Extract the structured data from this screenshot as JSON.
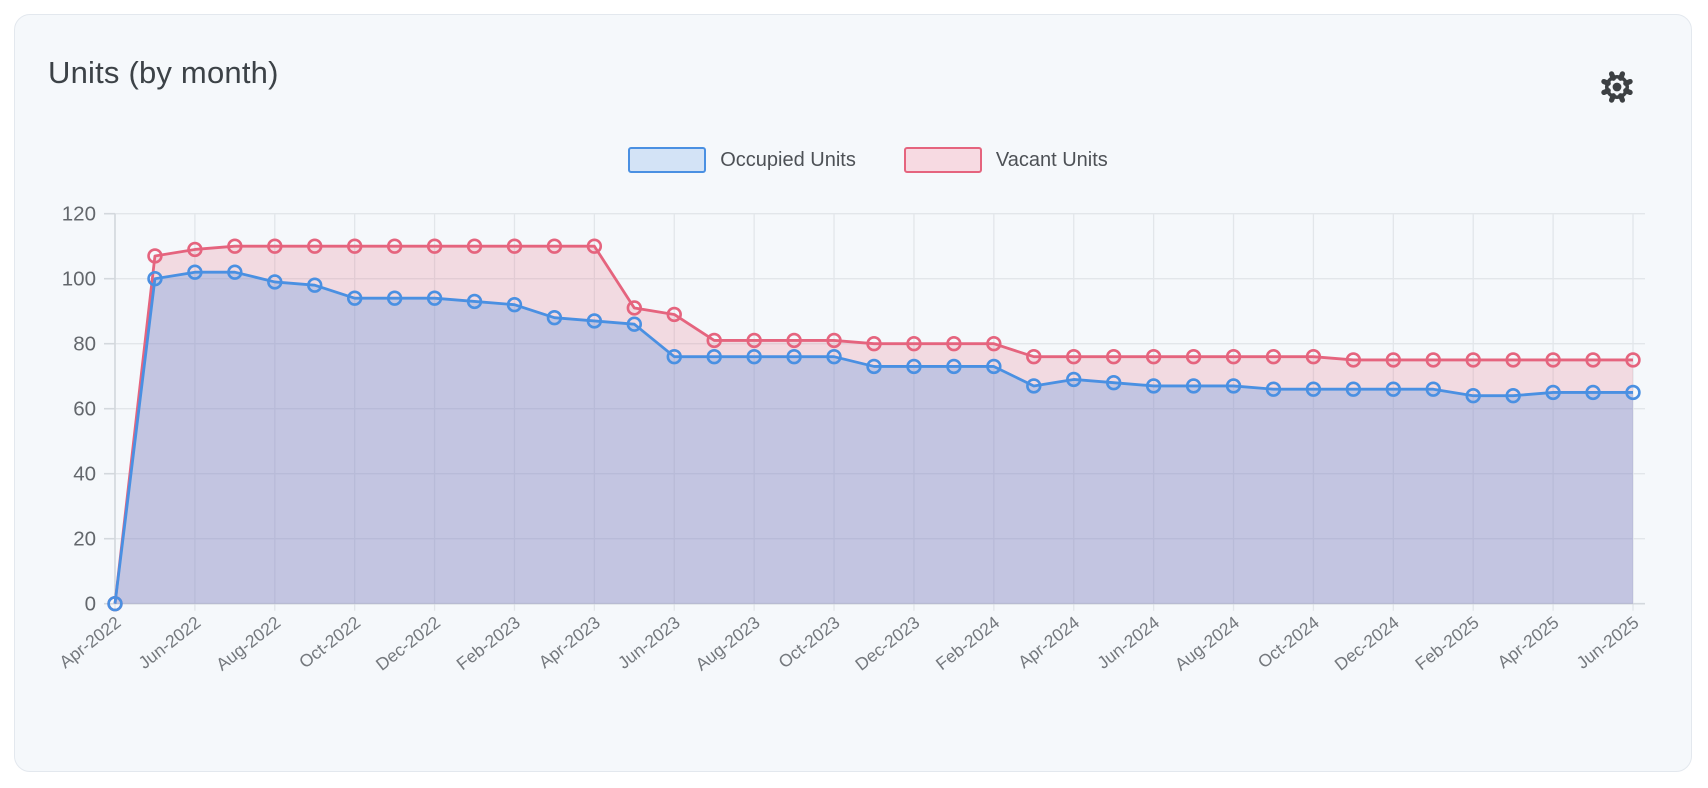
{
  "card": {
    "title": "Units (by month)",
    "settings_icon": "gear",
    "background": "#f5f8fb",
    "border_color": "#e3e8ee"
  },
  "legend": {
    "items": [
      {
        "label": "Occupied Units",
        "swatch_fill": "#d3e3f6",
        "swatch_border": "#4a90e2"
      },
      {
        "label": "Vacant Units",
        "swatch_fill": "#f7dae2",
        "swatch_border": "#e5647e"
      }
    ]
  },
  "chart_data": {
    "type": "area",
    "title": "Units (by month)",
    "x": [
      "Apr-2022",
      "May-2022",
      "Jun-2022",
      "Jul-2022",
      "Aug-2022",
      "Sep-2022",
      "Oct-2022",
      "Nov-2022",
      "Dec-2022",
      "Jan-2023",
      "Feb-2023",
      "Mar-2023",
      "Apr-2023",
      "May-2023",
      "Jun-2023",
      "Jul-2023",
      "Aug-2023",
      "Sep-2023",
      "Oct-2023",
      "Nov-2023",
      "Dec-2023",
      "Jan-2024",
      "Feb-2024",
      "Mar-2024",
      "Apr-2024",
      "May-2024",
      "Jun-2024",
      "Jul-2024",
      "Aug-2024",
      "Sep-2024",
      "Oct-2024",
      "Nov-2024",
      "Dec-2024",
      "Jan-2025",
      "Feb-2025",
      "Mar-2025",
      "Apr-2025",
      "May-2025",
      "Jun-2025"
    ],
    "x_tick_step": 2,
    "x_tick_labels": [
      "Apr-2022",
      "Jun-2022",
      "Aug-2022",
      "Oct-2022",
      "Dec-2022",
      "Feb-2023",
      "Apr-2023",
      "Jun-2023",
      "Aug-2023",
      "Oct-2023",
      "Dec-2023",
      "Feb-2024",
      "Apr-2024",
      "Jun-2024",
      "Aug-2024",
      "Oct-2024",
      "Dec-2024",
      "Feb-2025",
      "Apr-2025",
      "Jun-2025"
    ],
    "series": [
      {
        "name": "Vacant Units",
        "color": "#e5647e",
        "fill_opacity": 0.2,
        "values": [
          0,
          107,
          109,
          110,
          110,
          110,
          110,
          110,
          110,
          110,
          110,
          110,
          110,
          91,
          89,
          81,
          81,
          81,
          81,
          80,
          80,
          80,
          80,
          76,
          76,
          76,
          76,
          76,
          76,
          76,
          76,
          75,
          75,
          75,
          75,
          75,
          75,
          75,
          75
        ]
      },
      {
        "name": "Occupied Units",
        "color": "#4a90e2",
        "fill_opacity": 0.28,
        "values": [
          0,
          100,
          102,
          102,
          99,
          98,
          94,
          94,
          94,
          93,
          92,
          88,
          87,
          86,
          76,
          76,
          76,
          76,
          76,
          73,
          73,
          73,
          73,
          67,
          69,
          68,
          67,
          67,
          67,
          66,
          66,
          66,
          66,
          66,
          64,
          64,
          65,
          65,
          65
        ]
      }
    ],
    "ylim": [
      0,
      120
    ],
    "yticks": [
      0,
      20,
      40,
      60,
      80,
      100,
      120
    ],
    "grid": true,
    "legend_position": "top-center",
    "grid_color": "#e2e6ea",
    "axis_color": "#d3d8dd",
    "y_label_color": "#63676c",
    "x_label_color": "#74787d",
    "icon_color": "#3c4043"
  }
}
